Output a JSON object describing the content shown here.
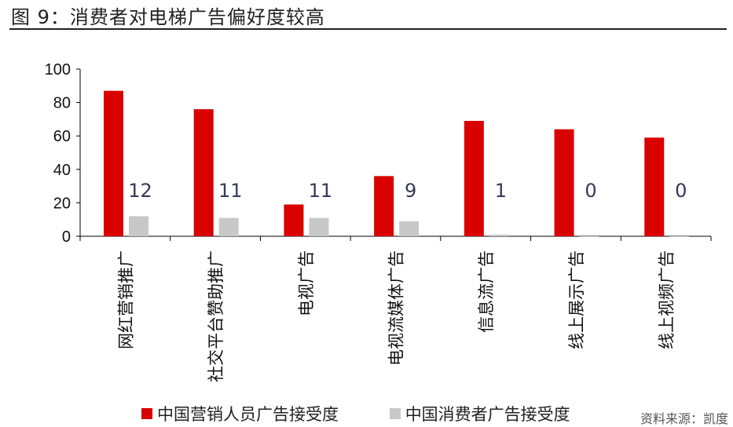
{
  "figure_title": "图 9：消费者对电梯广告偏好度较高",
  "source_text": "资料来源：凯度",
  "chart_data": {
    "type": "bar",
    "categories": [
      "网红营销推广",
      "社交平台赞助推广",
      "电视广告",
      "电视流媒体广告",
      "信息流广告",
      "线上展示广告",
      "线上视频广告"
    ],
    "series": [
      {
        "name": "中国营销人员广告接受度",
        "color": "#d90000",
        "values": [
          87,
          76,
          19,
          36,
          69,
          64,
          59
        ]
      },
      {
        "name": "中国消费者广告接受度",
        "color": "#c8c8c8",
        "values": [
          12,
          11,
          11,
          9,
          1,
          0,
          0
        ]
      }
    ],
    "data_labels": [
      "12",
      "11",
      "11",
      "9",
      "1",
      "0",
      "0"
    ],
    "yticks": [
      "0",
      "20",
      "40",
      "60",
      "80",
      "100"
    ],
    "ylim": [
      0,
      100
    ],
    "grid": false,
    "legend_position": "bottom"
  }
}
